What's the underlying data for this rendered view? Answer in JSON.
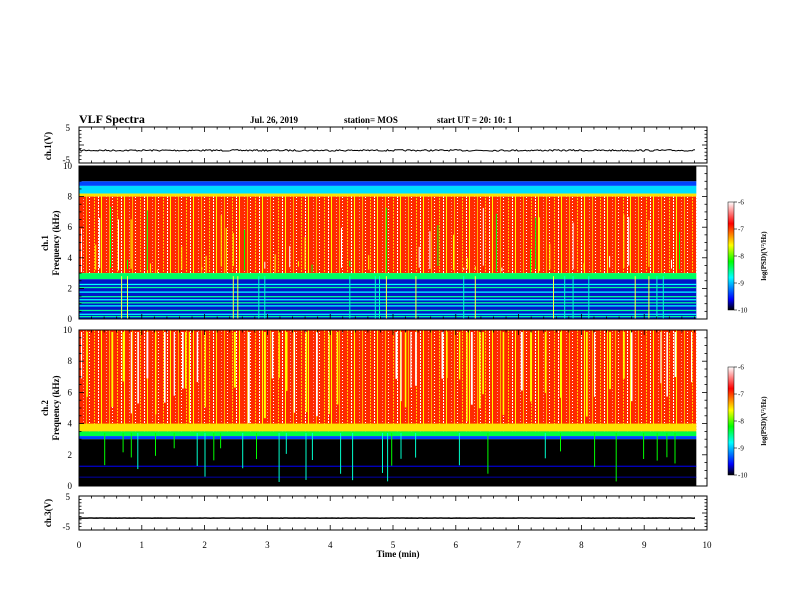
{
  "header": {
    "title": "VLF Spectra",
    "date": "Jul. 26, 2019",
    "station": "station= MOS",
    "start": "start  UT =   20: 10: 1"
  },
  "colors": {
    "black": "#000000",
    "blue": "#0000ff",
    "cyan": "#00ffff",
    "green": "#00ff00",
    "yellow": "#ffff00",
    "red": "#ff0000",
    "white": "#ffffff"
  },
  "chart_data": [
    {
      "type": "line",
      "panel": "ch1-waveform",
      "ylabel": "ch.1(V)",
      "ylim": [
        -5,
        5
      ],
      "yticks": [
        "5",
        "-5"
      ],
      "x": [
        0,
        10
      ],
      "xlim": [
        0,
        10
      ],
      "approx_level": -1.5,
      "series": [
        {
          "values": [
            -1.5,
            -1.5
          ]
        }
      ]
    },
    {
      "type": "heatmap",
      "panel": "ch1-spectrogram",
      "ylabel_lines": [
        "ch.1",
        "Frequency (kHz)"
      ],
      "xlim": [
        0,
        9.83
      ],
      "ylim": [
        0,
        10
      ],
      "yticks": [
        "0",
        "2",
        "4",
        "6",
        "8",
        "10"
      ],
      "approx_structure": {
        "broadband_red_band_khz": [
          3,
          8
        ],
        "noise_floor_top_khz": 8.7,
        "black_above_khz": 9
      },
      "colorbar": {
        "label": "log(PSD)(V²/Hz)",
        "ticks": [
          "-6",
          "-7",
          "-8",
          "-9",
          "-10"
        ],
        "range": [
          -10,
          -6
        ]
      }
    },
    {
      "type": "heatmap",
      "panel": "ch2-spectrogram",
      "ylabel_lines": [
        "ch.2",
        "Frequency (kHz)"
      ],
      "xlim": [
        0,
        9.83
      ],
      "ylim": [
        0,
        10
      ],
      "yticks": [
        "0",
        "2",
        "4",
        "6",
        "8",
        "10"
      ],
      "approx_structure": {
        "broadband_red_band_khz": [
          3.5,
          10
        ],
        "black_below_khz": 3
      },
      "colorbar": {
        "label": "log(PSD)(V²/Hz)",
        "ticks": [
          "-6",
          "-7",
          "-8",
          "-9",
          "-10"
        ],
        "range": [
          -10,
          -6
        ]
      }
    },
    {
      "type": "line",
      "panel": "ch3-waveform",
      "ylabel": "ch.3(V)",
      "ylim": [
        -5,
        5
      ],
      "yticks": [
        "5",
        "-5"
      ],
      "xlabel": "Time  (min)",
      "xlim": [
        0,
        10
      ],
      "xticks": [
        "0",
        "1",
        "2",
        "3",
        "4",
        "5",
        "6",
        "7",
        "8",
        "9",
        "10"
      ],
      "approx_level": -1.5,
      "series": [
        {
          "values": [
            -1.5,
            -1.5
          ]
        }
      ]
    }
  ]
}
